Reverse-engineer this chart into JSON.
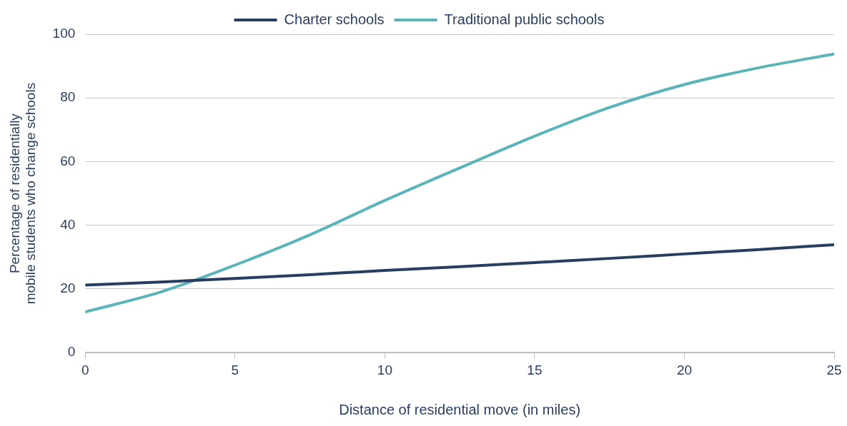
{
  "chart_data": {
    "type": "line",
    "xlabel": "Distance of residential move (in miles)",
    "ylabel": "Percentage of residentially mobile students who change schools",
    "x": [
      0,
      2.5,
      5,
      7.5,
      10,
      12.5,
      15,
      17.5,
      20,
      22.5,
      25
    ],
    "series": [
      {
        "name": "Charter schools",
        "color": "#283d5f",
        "values": [
          21.2,
          22.2,
          23.3,
          24.5,
          25.8,
          27,
          28.3,
          29.6,
          31,
          32.4,
          33.9
        ]
      },
      {
        "name": "Traditional public schools",
        "color": "#5ab4b8",
        "values": [
          12.8,
          19,
          27.5,
          37,
          47.8,
          58,
          68,
          77,
          84.2,
          89.5,
          93.8
        ]
      }
    ],
    "xlim": [
      0,
      25
    ],
    "xticks": [
      0,
      5,
      10,
      15,
      20,
      25
    ],
    "ylim": [
      0,
      100
    ],
    "yticks": [
      0,
      20,
      40,
      60,
      80,
      100
    ],
    "grid": "y",
    "legend": "top",
    "marker": "none",
    "line_style": "solid"
  }
}
